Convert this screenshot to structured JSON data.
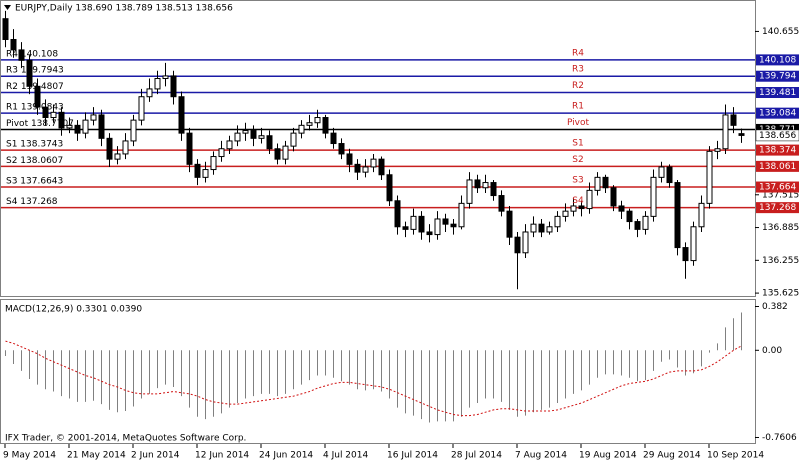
{
  "chart_data": {
    "type": "candlestick",
    "title": "EURJPY,Daily  138.690 138.789 138.513 138.656",
    "categories": [
      "9 May 2014",
      null,
      null,
      null,
      null,
      null,
      null,
      null,
      "21 May 2014",
      null,
      null,
      null,
      null,
      null,
      null,
      null,
      "2 Jun 2014",
      null,
      null,
      null,
      null,
      null,
      null,
      null,
      "12 Jun 2014",
      null,
      null,
      null,
      null,
      null,
      null,
      null,
      "24 Jun 2014",
      null,
      null,
      null,
      null,
      null,
      null,
      null,
      "4 Jul 2014",
      null,
      null,
      null,
      null,
      null,
      null,
      null,
      "16 Jul 2014",
      null,
      null,
      null,
      null,
      null,
      null,
      null,
      "28 Jul 2014",
      null,
      null,
      null,
      null,
      null,
      null,
      null,
      "7 Aug 2014",
      null,
      null,
      null,
      null,
      null,
      null,
      null,
      "19 Aug 2014",
      null,
      null,
      null,
      null,
      null,
      null,
      null,
      "29 Aug 2014",
      null,
      null,
      null,
      null,
      null,
      null,
      null,
      "10 Sep 2014",
      null,
      null,
      null,
      null
    ],
    "open": [
      140.9,
      140.5,
      140.3,
      140.1,
      139.6,
      139.2,
      139.0,
      139.1,
      138.8,
      138.85,
      138.7,
      138.95,
      139.05,
      138.6,
      138.2,
      138.3,
      138.55,
      138.95,
      139.4,
      139.55,
      139.75,
      139.8,
      139.4,
      138.7,
      138.1,
      137.85,
      138.0,
      138.25,
      138.4,
      138.55,
      138.7,
      138.75,
      138.6,
      138.65,
      138.4,
      138.2,
      138.45,
      138.7,
      138.85,
      138.9,
      139.0,
      138.7,
      138.5,
      138.3,
      138.1,
      137.95,
      138.05,
      138.2,
      137.9,
      137.4,
      136.9,
      136.85,
      137.1,
      136.8,
      136.75,
      137.05,
      136.95,
      136.9,
      137.35,
      137.8,
      137.65,
      137.75,
      137.5,
      137.2,
      136.7,
      136.4,
      136.8,
      136.95,
      136.8,
      136.9,
      137.1,
      137.2,
      137.3,
      137.25,
      137.6,
      137.85,
      137.65,
      137.3,
      137.2,
      137.0,
      136.85,
      137.1,
      137.85,
      138.05,
      137.75,
      136.5,
      136.25,
      136.9,
      137.35,
      138.35,
      138.4,
      139.05,
      138.69
    ],
    "high": [
      141.05,
      140.7,
      140.45,
      140.2,
      139.75,
      139.35,
      139.25,
      139.2,
      139.0,
      138.95,
      139.1,
      139.2,
      139.15,
      138.7,
      138.45,
      138.7,
      139.05,
      139.55,
      139.75,
      139.9,
      140.05,
      139.9,
      139.5,
      138.8,
      138.2,
      138.15,
      138.35,
      138.55,
      138.65,
      138.85,
      138.9,
      138.85,
      138.8,
      138.75,
      138.5,
      138.55,
      138.8,
      138.95,
      139.05,
      139.15,
      139.05,
      138.8,
      138.6,
      138.4,
      138.2,
      138.2,
      138.3,
      138.25,
      138.0,
      137.5,
      137.0,
      137.25,
      137.2,
      136.95,
      137.2,
      137.15,
      137.05,
      137.5,
      137.95,
      137.9,
      137.9,
      137.8,
      137.6,
      137.3,
      136.8,
      136.95,
      137.1,
      137.05,
      137.0,
      137.2,
      137.35,
      137.45,
      137.4,
      137.75,
      137.95,
      137.9,
      137.7,
      137.4,
      137.25,
      137.05,
      137.2,
      138.0,
      138.15,
      138.1,
      137.8,
      136.6,
      137.0,
      137.5,
      138.45,
      138.55,
      139.25,
      139.2,
      138.789
    ],
    "low": [
      140.35,
      140.15,
      139.95,
      139.45,
      139.05,
      138.85,
      138.9,
      138.65,
      138.7,
      138.55,
      138.6,
      138.85,
      138.45,
      138.05,
      138.1,
      138.2,
      138.45,
      138.85,
      139.3,
      139.45,
      139.6,
      139.25,
      138.55,
      137.95,
      137.7,
      137.75,
      137.9,
      138.15,
      138.3,
      138.45,
      138.55,
      138.45,
      138.5,
      138.3,
      138.1,
      138.1,
      138.35,
      138.6,
      138.75,
      138.8,
      138.6,
      138.4,
      138.2,
      137.95,
      137.8,
      137.85,
      137.95,
      137.8,
      137.3,
      136.75,
      136.7,
      136.75,
      136.65,
      136.6,
      136.65,
      136.8,
      136.75,
      136.85,
      137.25,
      137.55,
      137.55,
      137.4,
      137.1,
      136.55,
      135.7,
      136.3,
      136.7,
      136.7,
      136.75,
      136.8,
      137.0,
      137.1,
      137.1,
      137.15,
      137.5,
      137.55,
      137.2,
      137.05,
      136.85,
      136.7,
      136.75,
      137.0,
      137.75,
      137.65,
      136.35,
      135.9,
      136.15,
      136.8,
      137.25,
      138.2,
      138.3,
      138.7,
      138.513
    ],
    "close": [
      140.5,
      140.3,
      140.1,
      139.6,
      139.2,
      139.0,
      139.1,
      138.8,
      138.85,
      138.7,
      138.95,
      139.05,
      138.6,
      138.2,
      138.3,
      138.55,
      138.95,
      139.4,
      139.55,
      139.75,
      139.8,
      139.4,
      138.7,
      138.1,
      137.85,
      138.0,
      138.25,
      138.4,
      138.55,
      138.7,
      138.75,
      138.6,
      138.65,
      138.4,
      138.2,
      138.45,
      138.7,
      138.85,
      138.9,
      139.0,
      138.7,
      138.5,
      138.3,
      138.1,
      137.95,
      138.05,
      138.2,
      137.9,
      137.4,
      136.9,
      136.85,
      137.1,
      136.8,
      136.75,
      137.05,
      136.95,
      136.9,
      137.35,
      137.8,
      137.65,
      137.75,
      137.5,
      137.2,
      136.7,
      136.4,
      136.8,
      136.95,
      136.8,
      136.9,
      137.1,
      137.2,
      137.3,
      137.25,
      137.6,
      137.85,
      137.65,
      137.3,
      137.2,
      137.0,
      136.85,
      137.1,
      137.85,
      138.05,
      137.75,
      136.5,
      136.25,
      136.9,
      137.35,
      138.35,
      138.4,
      139.05,
      138.85,
      138.656
    ],
    "color_up": "#ffffff",
    "color_down": "#000000",
    "ylim": [
      135.55,
      141.24
    ],
    "yticks": [
      140.655,
      137.515,
      136.885,
      136.255,
      135.625
    ],
    "levels": [
      {
        "name": "R4",
        "label": "R4 140.108",
        "value": 140.108,
        "color": "#1a1aa6"
      },
      {
        "name": "R3",
        "label": "R3 139.7943",
        "value": 139.794,
        "color": "#1a1aa6"
      },
      {
        "name": "R2",
        "label": "R2 139.4807",
        "value": 139.481,
        "color": "#1a1aa6"
      },
      {
        "name": "R1",
        "label": "R1 139.0843",
        "value": 139.084,
        "color": "#1a1aa6"
      },
      {
        "name": "Pivot",
        "label": "Pivot 138.7707",
        "value": 138.771,
        "color": "#000000"
      },
      {
        "name": "S1",
        "label": "S1 138.3743",
        "value": 138.374,
        "color": "#c81e1e"
      },
      {
        "name": "S2",
        "label": "S2 138.0607",
        "value": 138.061,
        "color": "#c81e1e"
      },
      {
        "name": "S3",
        "label": "S3 137.6643",
        "value": 137.664,
        "color": "#c81e1e"
      },
      {
        "name": "S4",
        "label": "S4 137.268",
        "value": 137.268,
        "color": "#c81e1e"
      }
    ],
    "indicator": {
      "type": "macd",
      "title": "MACD(12,26,9) 0.3301 0.0390",
      "histogram": {
        "color": "#808080",
        "values": [
          -0.05,
          -0.12,
          -0.18,
          -0.25,
          -0.3,
          -0.34,
          -0.36,
          -0.4,
          -0.42,
          -0.45,
          -0.45,
          -0.44,
          -0.47,
          -0.52,
          -0.54,
          -0.53,
          -0.49,
          -0.42,
          -0.38,
          -0.33,
          -0.3,
          -0.32,
          -0.4,
          -0.5,
          -0.58,
          -0.6,
          -0.58,
          -0.55,
          -0.5,
          -0.46,
          -0.42,
          -0.4,
          -0.38,
          -0.38,
          -0.4,
          -0.38,
          -0.34,
          -0.3,
          -0.26,
          -0.22,
          -0.22,
          -0.24,
          -0.27,
          -0.3,
          -0.34,
          -0.35,
          -0.34,
          -0.36,
          -0.42,
          -0.5,
          -0.55,
          -0.57,
          -0.6,
          -0.63,
          -0.62,
          -0.62,
          -0.62,
          -0.58,
          -0.5,
          -0.46,
          -0.42,
          -0.42,
          -0.45,
          -0.52,
          -0.58,
          -0.57,
          -0.54,
          -0.52,
          -0.5,
          -0.46,
          -0.42,
          -0.38,
          -0.35,
          -0.3,
          -0.24,
          -0.21,
          -0.21,
          -0.22,
          -0.24,
          -0.27,
          -0.26,
          -0.18,
          -0.1,
          -0.08,
          -0.15,
          -0.22,
          -0.2,
          -0.14,
          -0.02,
          0.06,
          0.2,
          0.28,
          0.3301
        ]
      },
      "signal": {
        "color": "#d01010",
        "values": [
          0.08,
          0.06,
          0.03,
          0.0,
          -0.03,
          -0.07,
          -0.1,
          -0.13,
          -0.16,
          -0.19,
          -0.22,
          -0.24,
          -0.27,
          -0.3,
          -0.32,
          -0.35,
          -0.37,
          -0.38,
          -0.38,
          -0.38,
          -0.37,
          -0.36,
          -0.37,
          -0.38,
          -0.4,
          -0.43,
          -0.45,
          -0.46,
          -0.47,
          -0.47,
          -0.46,
          -0.45,
          -0.44,
          -0.43,
          -0.42,
          -0.41,
          -0.4,
          -0.38,
          -0.36,
          -0.33,
          -0.31,
          -0.29,
          -0.28,
          -0.28,
          -0.29,
          -0.3,
          -0.31,
          -0.32,
          -0.34,
          -0.37,
          -0.4,
          -0.43,
          -0.46,
          -0.49,
          -0.52,
          -0.54,
          -0.56,
          -0.57,
          -0.57,
          -0.56,
          -0.54,
          -0.52,
          -0.51,
          -0.51,
          -0.52,
          -0.53,
          -0.53,
          -0.53,
          -0.53,
          -0.52,
          -0.5,
          -0.48,
          -0.46,
          -0.43,
          -0.4,
          -0.37,
          -0.34,
          -0.31,
          -0.29,
          -0.28,
          -0.27,
          -0.25,
          -0.22,
          -0.19,
          -0.18,
          -0.18,
          -0.18,
          -0.17,
          -0.14,
          -0.1,
          -0.05,
          0.0,
          0.039
        ]
      },
      "ylim": [
        -0.8,
        0.43
      ],
      "yticks": [
        0.382,
        {
          "value": 0,
          "label": "0.00"
        },
        -0.7606
      ]
    },
    "footer": "IFX Trader, © 2001-2014, MetaQuotes Software Corp."
  }
}
